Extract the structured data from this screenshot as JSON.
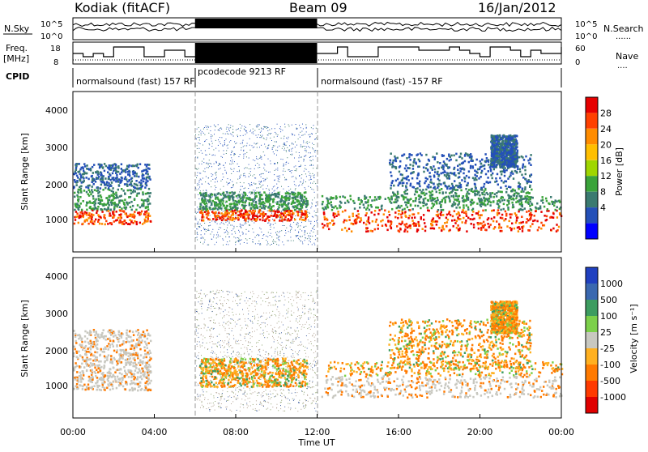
{
  "header": {
    "station": "Kodiak (fitACF)",
    "beam": "Beam 09",
    "date": "16/Jan/2012"
  },
  "panels": {
    "nsky": {
      "label": "N.Sky",
      "left_ticks": [
        "10^5",
        "10^0"
      ],
      "right_ticks": [
        "10^5",
        "10^0"
      ],
      "right_label": "N.Search",
      "right_legend": "......"
    },
    "freq": {
      "label_line1": "Freq.",
      "label_line2": "[MHz]",
      "left_ticks": [
        "18",
        "8"
      ],
      "right_ticks": [
        "60",
        "0"
      ],
      "right_label": "Nave",
      "right_legend": "...."
    },
    "cpid": {
      "label": "CPID",
      "segments": [
        {
          "text": "normalsound (fast) 157 RF",
          "start_h": 0,
          "end_h": 6
        },
        {
          "text": "pcodecode 9213 RF",
          "start_h": 6,
          "end_h": 12
        },
        {
          "text": "normalsound (fast) -157 RF",
          "start_h": 12,
          "end_h": 24
        }
      ]
    }
  },
  "chart_data": [
    {
      "type": "heatmap",
      "ylabel": "Slant Range [km]",
      "yticks": [
        "4000",
        "3000",
        "2000",
        "1000"
      ],
      "ylim": [
        0,
        4500
      ],
      "colorbar": {
        "label": "Power [dB]",
        "ticks": [
          "28",
          "24",
          "20",
          "16",
          "12",
          "8",
          "4"
        ],
        "colors": [
          "#e60000",
          "#ff4000",
          "#ff8c00",
          "#ffbf00",
          "#9fd600",
          "#3aa33a",
          "#3a7a70",
          "#2450b8",
          "#0000ff"
        ],
        "levels": [
          32,
          28,
          24,
          20,
          16,
          12,
          8,
          4,
          0
        ]
      }
    },
    {
      "type": "heatmap",
      "ylabel": "Slant Range [km]",
      "yticks": [
        "4000",
        "3000",
        "2000",
        "1000"
      ],
      "ylim": [
        0,
        4500
      ],
      "colorbar": {
        "label": "Velocity [m s⁻¹]",
        "ticks": [
          "1000",
          "500",
          "100",
          "25",
          "-25",
          "-100",
          "-500",
          "-1000"
        ],
        "colors": [
          "#2040c0",
          "#3a68b0",
          "#3d9c60",
          "#7cd04a",
          "#c8c8c0",
          "#ffb020",
          "#ff7a00",
          "#ff3a00",
          "#e00000"
        ],
        "levels": [
          1000,
          500,
          100,
          25,
          -25,
          -100,
          -500,
          -1000
        ]
      }
    }
  ],
  "time_axis": {
    "xlabel": "Time UT",
    "ticks": [
      "00:00",
      "04:00",
      "08:00",
      "12:00",
      "16:00",
      "20:00",
      "00:00"
    ]
  }
}
